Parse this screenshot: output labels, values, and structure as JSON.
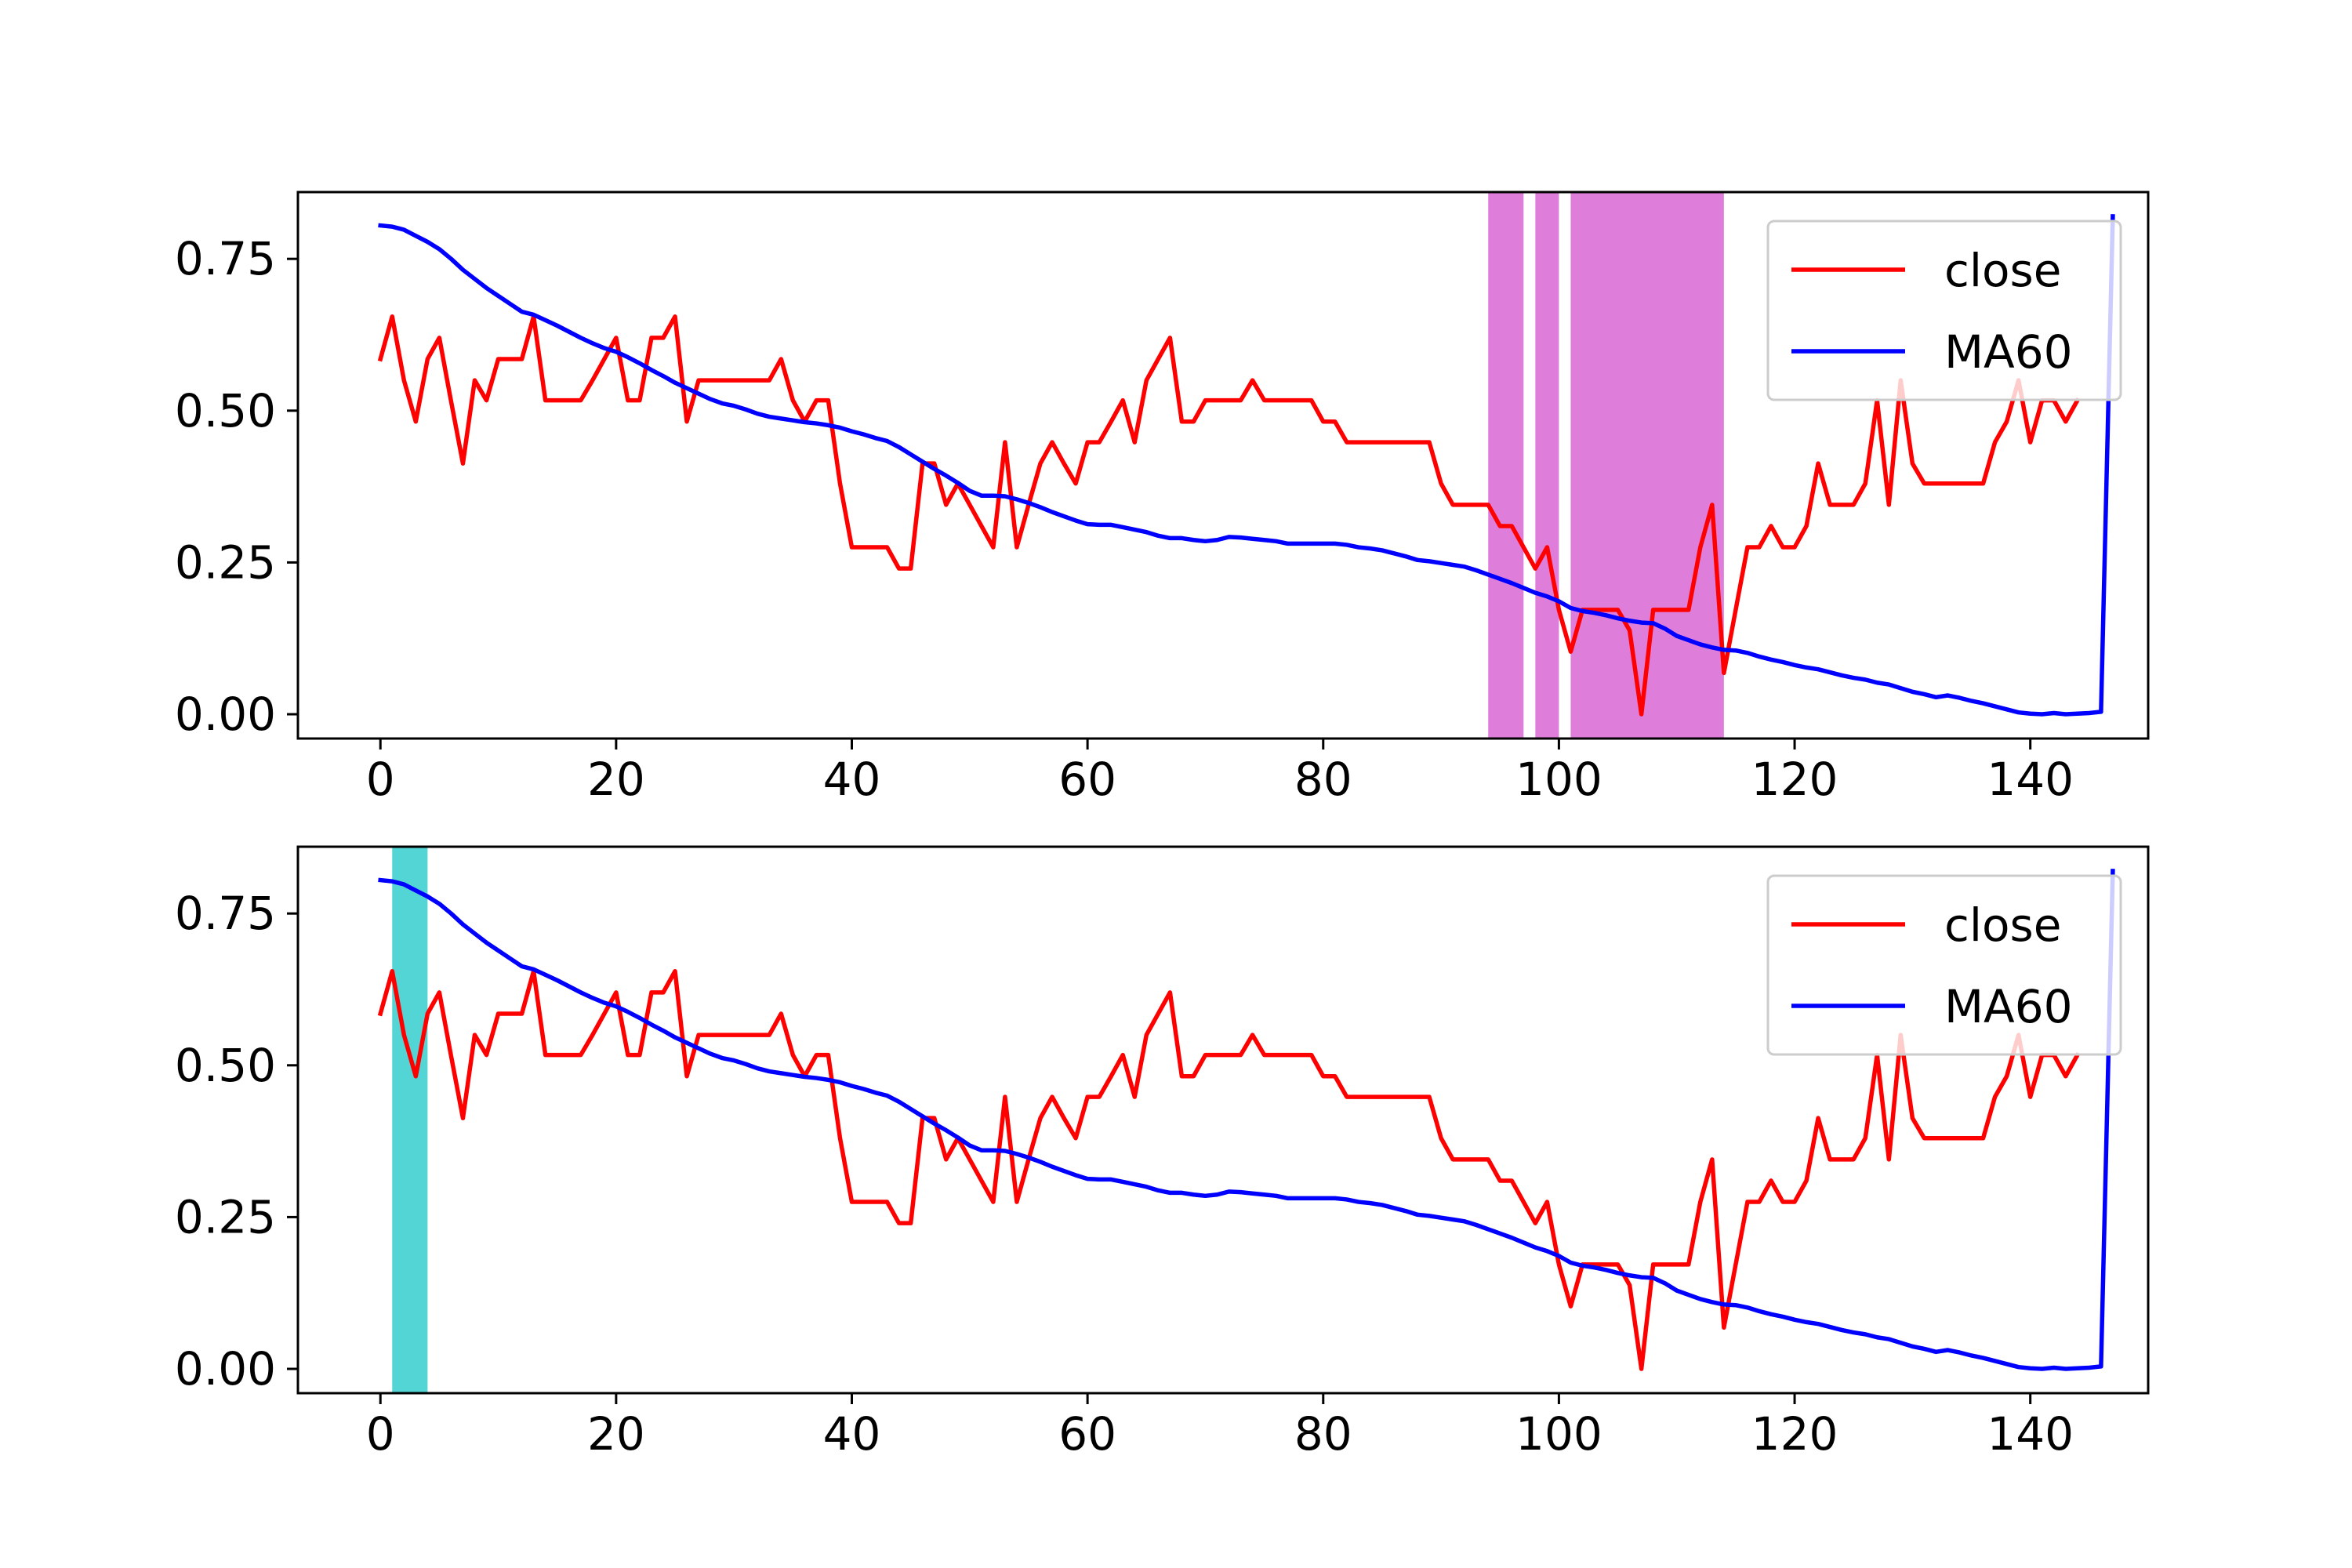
{
  "chart_data": [
    {
      "type": "line",
      "xlim": [
        -7,
        150
      ],
      "ylim": [
        -0.04,
        0.86
      ],
      "x_ticks": [
        0,
        20,
        40,
        60,
        80,
        100,
        120,
        140
      ],
      "y_ticks": [
        0.0,
        0.25,
        0.5,
        0.75
      ],
      "y_tick_labels": [
        "0.00",
        "0.25",
        "0.50",
        "0.75"
      ],
      "legend_position": "top-right",
      "grid": false,
      "shaded_spans": [
        {
          "x0": 94,
          "x1": 97,
          "color": "#da70d6"
        },
        {
          "x0": 98,
          "x1": 100,
          "color": "#da70d6"
        },
        {
          "x0": 101,
          "x1": 114,
          "color": "#da70d6"
        }
      ],
      "series": [
        {
          "name": "close",
          "color": "#ff0000",
          "x_start": 0,
          "values": [
            0.585,
            0.655,
            0.55,
            0.482,
            0.585,
            0.62,
            0.515,
            0.413,
            0.55,
            0.517,
            0.585,
            0.585,
            0.585,
            0.655,
            0.517,
            0.517,
            0.517,
            0.517,
            0.55,
            0.585,
            0.62,
            0.517,
            0.517,
            0.62,
            0.62,
            0.655,
            0.482,
            0.55,
            0.55,
            0.55,
            0.55,
            0.55,
            0.55,
            0.55,
            0.585,
            0.517,
            0.482,
            0.517,
            0.517,
            0.38,
            0.275,
            0.275,
            0.275,
            0.275,
            0.24,
            0.24,
            0.413,
            0.413,
            0.345,
            0.38,
            0.345,
            0.31,
            0.275,
            0.448,
            0.275,
            0.345,
            0.413,
            0.448,
            0.413,
            0.38,
            0.448,
            0.448,
            0.482,
            0.517,
            0.448,
            0.55,
            0.585,
            0.62,
            0.482,
            0.482,
            0.517,
            0.517,
            0.517,
            0.517,
            0.55,
            0.517,
            0.517,
            0.517,
            0.517,
            0.517,
            0.482,
            0.482,
            0.448,
            0.448,
            0.448,
            0.448,
            0.448,
            0.448,
            0.448,
            0.448,
            0.38,
            0.345,
            0.345,
            0.345,
            0.345,
            0.31,
            0.31,
            0.275,
            0.24,
            0.275,
            0.172,
            0.103,
            0.172,
            0.172,
            0.172,
            0.172,
            0.138,
            0.0,
            0.172,
            0.172,
            0.172,
            0.172,
            0.275,
            0.345,
            0.068,
            0.172,
            0.275,
            0.275,
            0.31,
            0.275,
            0.275,
            0.31,
            0.413,
            0.345,
            0.345,
            0.345,
            0.38,
            0.517,
            0.345,
            0.55,
            0.413,
            0.38,
            0.38,
            0.38,
            0.38,
            0.38,
            0.38,
            0.448,
            0.482,
            0.55,
            0.448,
            0.517,
            0.517,
            0.482,
            0.517
          ]
        },
        {
          "name": "MA60",
          "color": "#0000ff",
          "x_start": 0,
          "values": [
            0.805,
            0.803,
            0.798,
            0.788,
            0.778,
            0.766,
            0.75,
            0.732,
            0.717,
            0.702,
            0.689,
            0.676,
            0.663,
            0.658,
            0.649,
            0.64,
            0.63,
            0.62,
            0.611,
            0.603,
            0.597,
            0.588,
            0.578,
            0.567,
            0.557,
            0.546,
            0.537,
            0.528,
            0.519,
            0.512,
            0.508,
            0.502,
            0.495,
            0.49,
            0.487,
            0.484,
            0.481,
            0.479,
            0.476,
            0.472,
            0.466,
            0.461,
            0.455,
            0.45,
            0.44,
            0.428,
            0.416,
            0.404,
            0.393,
            0.381,
            0.368,
            0.36,
            0.36,
            0.359,
            0.354,
            0.348,
            0.341,
            0.333,
            0.326,
            0.319,
            0.313,
            0.312,
            0.312,
            0.308,
            0.304,
            0.3,
            0.294,
            0.29,
            0.29,
            0.287,
            0.285,
            0.287,
            0.292,
            0.291,
            0.289,
            0.287,
            0.285,
            0.281,
            0.281,
            0.281,
            0.281,
            0.281,
            0.279,
            0.275,
            0.273,
            0.27,
            0.265,
            0.26,
            0.254,
            0.252,
            0.249,
            0.246,
            0.243,
            0.237,
            0.23,
            0.223,
            0.216,
            0.208,
            0.2,
            0.194,
            0.186,
            0.175,
            0.17,
            0.167,
            0.163,
            0.158,
            0.154,
            0.151,
            0.15,
            0.141,
            0.129,
            0.122,
            0.115,
            0.11,
            0.106,
            0.105,
            0.101,
            0.095,
            0.09,
            0.086,
            0.081,
            0.077,
            0.074,
            0.069,
            0.064,
            0.06,
            0.057,
            0.052,
            0.049,
            0.043,
            0.037,
            0.033,
            0.028,
            0.031,
            0.027,
            0.022,
            0.018,
            0.013,
            0.008,
            0.003,
            0.001,
            0.0,
            0.002,
            0.0,
            0.001,
            0.002,
            0.004,
            0.82
          ]
        }
      ]
    },
    {
      "type": "line",
      "xlim": [
        -7,
        150
      ],
      "ylim": [
        -0.04,
        0.86
      ],
      "x_ticks": [
        0,
        20,
        40,
        60,
        80,
        100,
        120,
        140
      ],
      "y_ticks": [
        0.0,
        0.25,
        0.5,
        0.75
      ],
      "y_tick_labels": [
        "0.00",
        "0.25",
        "0.50",
        "0.75"
      ],
      "legend_position": "top-right",
      "grid": false,
      "shaded_spans": [
        {
          "x0": 1,
          "x1": 4,
          "color": "#40d0d0"
        }
      ],
      "series": [
        {
          "name": "close",
          "color": "#ff0000",
          "x_start": 0,
          "values": [
            0.585,
            0.655,
            0.55,
            0.482,
            0.585,
            0.62,
            0.515,
            0.413,
            0.55,
            0.517,
            0.585,
            0.585,
            0.585,
            0.655,
            0.517,
            0.517,
            0.517,
            0.517,
            0.55,
            0.585,
            0.62,
            0.517,
            0.517,
            0.62,
            0.62,
            0.655,
            0.482,
            0.55,
            0.55,
            0.55,
            0.55,
            0.55,
            0.55,
            0.55,
            0.585,
            0.517,
            0.482,
            0.517,
            0.517,
            0.38,
            0.275,
            0.275,
            0.275,
            0.275,
            0.24,
            0.24,
            0.413,
            0.413,
            0.345,
            0.38,
            0.345,
            0.31,
            0.275,
            0.448,
            0.275,
            0.345,
            0.413,
            0.448,
            0.413,
            0.38,
            0.448,
            0.448,
            0.482,
            0.517,
            0.448,
            0.55,
            0.585,
            0.62,
            0.482,
            0.482,
            0.517,
            0.517,
            0.517,
            0.517,
            0.55,
            0.517,
            0.517,
            0.517,
            0.517,
            0.517,
            0.482,
            0.482,
            0.448,
            0.448,
            0.448,
            0.448,
            0.448,
            0.448,
            0.448,
            0.448,
            0.38,
            0.345,
            0.345,
            0.345,
            0.345,
            0.31,
            0.31,
            0.275,
            0.24,
            0.275,
            0.172,
            0.103,
            0.172,
            0.172,
            0.172,
            0.172,
            0.138,
            0.0,
            0.172,
            0.172,
            0.172,
            0.172,
            0.275,
            0.345,
            0.068,
            0.172,
            0.275,
            0.275,
            0.31,
            0.275,
            0.275,
            0.31,
            0.413,
            0.345,
            0.345,
            0.345,
            0.38,
            0.517,
            0.345,
            0.55,
            0.413,
            0.38,
            0.38,
            0.38,
            0.38,
            0.38,
            0.38,
            0.448,
            0.482,
            0.55,
            0.448,
            0.517,
            0.517,
            0.482,
            0.517
          ]
        },
        {
          "name": "MA60",
          "color": "#0000ff",
          "x_start": 0,
          "values": [
            0.805,
            0.803,
            0.798,
            0.788,
            0.778,
            0.766,
            0.75,
            0.732,
            0.717,
            0.702,
            0.689,
            0.676,
            0.663,
            0.658,
            0.649,
            0.64,
            0.63,
            0.62,
            0.611,
            0.603,
            0.597,
            0.588,
            0.578,
            0.567,
            0.557,
            0.546,
            0.537,
            0.528,
            0.519,
            0.512,
            0.508,
            0.502,
            0.495,
            0.49,
            0.487,
            0.484,
            0.481,
            0.479,
            0.476,
            0.472,
            0.466,
            0.461,
            0.455,
            0.45,
            0.44,
            0.428,
            0.416,
            0.404,
            0.393,
            0.381,
            0.368,
            0.36,
            0.36,
            0.359,
            0.354,
            0.348,
            0.341,
            0.333,
            0.326,
            0.319,
            0.313,
            0.312,
            0.312,
            0.308,
            0.304,
            0.3,
            0.294,
            0.29,
            0.29,
            0.287,
            0.285,
            0.287,
            0.292,
            0.291,
            0.289,
            0.287,
            0.285,
            0.281,
            0.281,
            0.281,
            0.281,
            0.281,
            0.279,
            0.275,
            0.273,
            0.27,
            0.265,
            0.26,
            0.254,
            0.252,
            0.249,
            0.246,
            0.243,
            0.237,
            0.23,
            0.223,
            0.216,
            0.208,
            0.2,
            0.194,
            0.186,
            0.175,
            0.17,
            0.167,
            0.163,
            0.158,
            0.154,
            0.151,
            0.15,
            0.141,
            0.129,
            0.122,
            0.115,
            0.11,
            0.106,
            0.105,
            0.101,
            0.095,
            0.09,
            0.086,
            0.081,
            0.077,
            0.074,
            0.069,
            0.064,
            0.06,
            0.057,
            0.052,
            0.049,
            0.043,
            0.037,
            0.033,
            0.028,
            0.031,
            0.027,
            0.022,
            0.018,
            0.013,
            0.008,
            0.003,
            0.001,
            0.0,
            0.002,
            0.0,
            0.001,
            0.002,
            0.004,
            0.82
          ]
        }
      ]
    }
  ]
}
